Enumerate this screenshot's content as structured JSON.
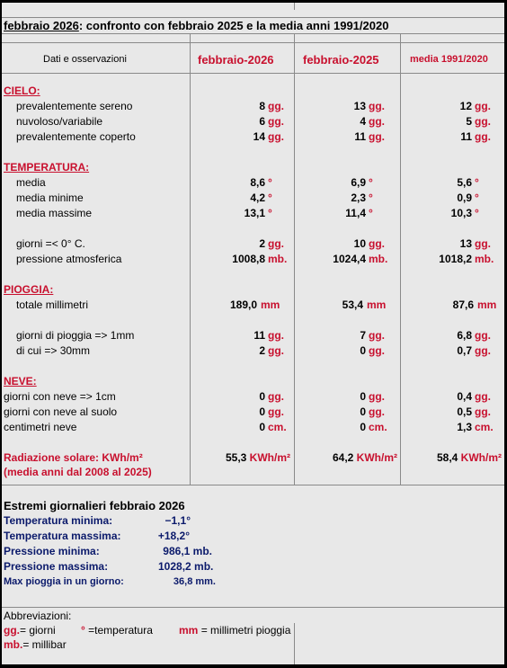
{
  "title": {
    "prefix": "febbraio 2026",
    "rest": ": confronto con febbraio 2025 e la media anni 1991/2020"
  },
  "headers": {
    "label": "Dati e osservazioni",
    "col1": "febbraio-2026",
    "col2": "febbraio-2025",
    "col3": "media 1991/2020"
  },
  "cielo": {
    "section": "CIELO:",
    "rows": [
      {
        "label": "prevalentemente sereno",
        "v1": "8",
        "v2": "13",
        "v3": "12",
        "u": "gg."
      },
      {
        "label": "nuvoloso/variabile",
        "v1": "6",
        "v2": "4",
        "v3": "5",
        "u": "gg."
      },
      {
        "label": "prevalentemente coperto",
        "v1": "14",
        "v2": "11",
        "v3": "11",
        "u": "gg."
      }
    ]
  },
  "temperatura": {
    "section": "TEMPERATURA:",
    "rows": [
      {
        "label": "media",
        "v1": "8,6",
        "v2": "6,9",
        "v3": "5,6",
        "u": "°"
      },
      {
        "label": "media minime",
        "v1": "4,2",
        "v2": "2,3",
        "v3": "0,9",
        "u": "°"
      },
      {
        "label": "media massime",
        "v1": "13,1",
        "v2": "11,4",
        "v3": "10,3",
        "u": "°"
      }
    ],
    "rows2": [
      {
        "label": "giorni =< 0° C.",
        "v1": "2",
        "v2": "10",
        "v3": "13",
        "u": "gg."
      },
      {
        "label": "pressione atmosferica",
        "v1": "1008,8",
        "v2": "1024,4",
        "v3": "1018,2",
        "u": "mb."
      }
    ]
  },
  "pioggia": {
    "section": "PIOGGIA:",
    "total": {
      "label": "totale millimetri",
      "v1": "189,0",
      "v2": "53,4",
      "v3": "87,6",
      "u": "mm"
    },
    "rows": [
      {
        "label": "giorni di pioggia => 1mm",
        "v1": "11",
        "v2": "7",
        "v3": "6,8",
        "u": "gg."
      },
      {
        "label": "di cui => 30mm",
        "v1": "2",
        "v2": "0",
        "v3": "0,7",
        "u": "gg."
      }
    ]
  },
  "neve": {
    "section": "NEVE:",
    "rows": [
      {
        "label": "giorni con neve => 1cm",
        "v1": "0",
        "v2": "0",
        "v3": "0,4",
        "u": "gg."
      },
      {
        "label": "giorni con neve al suolo",
        "v1": "0",
        "v2": "0",
        "v3": "0,5",
        "u": "gg."
      },
      {
        "label": "centimetri neve",
        "v1": "0",
        "v2": "0",
        "v3": "1,3",
        "u": "cm."
      }
    ]
  },
  "radiazione": {
    "label": "Radiazione solare:  KWh/m²",
    "note": "(media anni dal 2008 al 2025)",
    "v1": "55,3",
    "v2": "64,2",
    "v3": "58,4",
    "u": "KWh/m²"
  },
  "estremi": {
    "title": "Estremi giornalieri febbraio 2026",
    "items": [
      {
        "label": "Temperatura minima:",
        "value": "−1,1°"
      },
      {
        "label": "Temperatura massima:",
        "value": "+18,2°"
      },
      {
        "label": "Pressione minima:",
        "value": "986,1 mb."
      },
      {
        "label": "Pressione massima:",
        "value": "1028,2 mb."
      },
      {
        "label": "Max pioggia in un giorno:",
        "value": "36,8 mm."
      }
    ]
  },
  "abbreviazioni": {
    "title": "Abbreviazioni:",
    "gg_key": "gg.",
    "gg_text": "= giorni",
    "deg_key": "°",
    "deg_text": "=temperatura",
    "mm_key": "mm",
    "mm_text": "= millimetri pioggia",
    "mb_key": "mb.",
    "mb_text": "= millibar"
  }
}
